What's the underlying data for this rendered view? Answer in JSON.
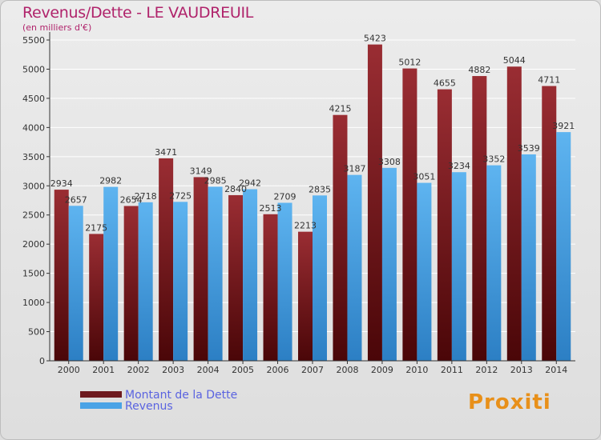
{
  "title": "Revenus/Dette - LE VAUDREUIL",
  "subtitle": "(en milliers d'€)",
  "brand": "Proxiti",
  "colors": {
    "dette": "#6e1a1f",
    "revenus": "#4aa3e6",
    "title": "#b0236b"
  },
  "chart_data": {
    "type": "bar",
    "title": "Revenus/Dette - LE VAUDREUIL",
    "subtitle": "(en milliers d'€)",
    "categories": [
      "2000",
      "2001",
      "2002",
      "2003",
      "2004",
      "2005",
      "2006",
      "2007",
      "2008",
      "2009",
      "2010",
      "2011",
      "2012",
      "2013",
      "2014"
    ],
    "series": [
      {
        "name": "Montant de la Dette",
        "values": [
          2934,
          2175,
          2654,
          3471,
          3149,
          2840,
          2513,
          2213,
          4215,
          5423,
          5012,
          4655,
          4882,
          5044,
          4711
        ]
      },
      {
        "name": "Revenus",
        "values": [
          2657,
          2982,
          2718,
          2725,
          2985,
          2942,
          2709,
          2835,
          3187,
          3308,
          3051,
          3234,
          3352,
          3539,
          3921
        ]
      }
    ],
    "yticks": [
      0,
      500,
      1000,
      1500,
      2000,
      2500,
      3000,
      3500,
      4000,
      4500,
      5000,
      5500
    ],
    "ylim": [
      0,
      5500
    ],
    "grid": true,
    "legend_position": "bottom-left"
  }
}
